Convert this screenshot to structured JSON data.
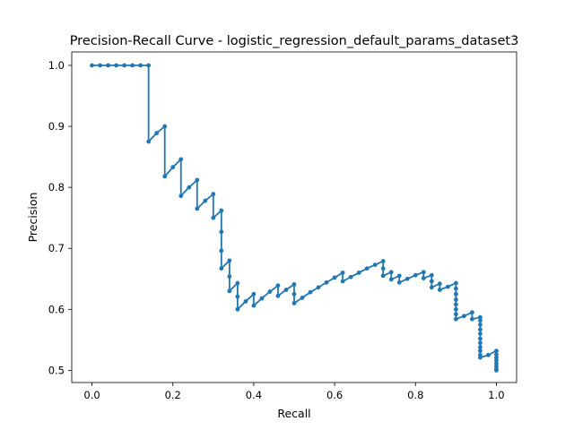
{
  "chart_data": {
    "type": "line",
    "title": "Precision-Recall Curve - logistic_regression_default_params_dataset3",
    "xlabel": "Recall",
    "ylabel": "Precision",
    "xlim": [
      -0.05,
      1.05
    ],
    "ylim": [
      0.48,
      1.022
    ],
    "xticks": [
      {
        "value": 0.0,
        "label": "0.0"
      },
      {
        "value": 0.2,
        "label": "0.2"
      },
      {
        "value": 0.4,
        "label": "0.4"
      },
      {
        "value": 0.6,
        "label": "0.6"
      },
      {
        "value": 0.8,
        "label": "0.8"
      },
      {
        "value": 1.0,
        "label": "1.0"
      }
    ],
    "yticks": [
      {
        "value": 0.5,
        "label": "0.5"
      },
      {
        "value": 0.6,
        "label": "0.6"
      },
      {
        "value": 0.7,
        "label": "0.7"
      },
      {
        "value": 0.8,
        "label": "0.8"
      },
      {
        "value": 0.9,
        "label": "0.9"
      },
      {
        "value": 1.0,
        "label": "1.0"
      }
    ],
    "grid": false,
    "marker": "circle",
    "color": "#1f77b4",
    "x": [
      0.0,
      0.02,
      0.04,
      0.06,
      0.08,
      0.1,
      0.12,
      0.14,
      0.14,
      0.16,
      0.18,
      0.18,
      0.2,
      0.22,
      0.22,
      0.24,
      0.26,
      0.26,
      0.28,
      0.3,
      0.3,
      0.32,
      0.32,
      0.32,
      0.32,
      0.34,
      0.34,
      0.34,
      0.36,
      0.36,
      0.36,
      0.38,
      0.4,
      0.4,
      0.42,
      0.44,
      0.46,
      0.46,
      0.48,
      0.5,
      0.5,
      0.5,
      0.52,
      0.54,
      0.56,
      0.58,
      0.6,
      0.62,
      0.62,
      0.64,
      0.66,
      0.68,
      0.7,
      0.72,
      0.72,
      0.72,
      0.74,
      0.74,
      0.76,
      0.76,
      0.78,
      0.8,
      0.82,
      0.82,
      0.84,
      0.84,
      0.84,
      0.86,
      0.86,
      0.88,
      0.9,
      0.9,
      0.9,
      0.9,
      0.9,
      0.9,
      0.9,
      0.9,
      0.9,
      0.92,
      0.94,
      0.94,
      0.96,
      0.96,
      0.96,
      0.96,
      0.96,
      0.96,
      0.96,
      0.96,
      0.96,
      0.96,
      0.96,
      0.98,
      1.0,
      1.0,
      1.0,
      1.0,
      1.0,
      1.0,
      1.0,
      1.0
    ],
    "y": [
      1.0,
      1.0,
      1.0,
      1.0,
      1.0,
      1.0,
      1.0,
      1.0,
      0.875,
      0.889,
      0.9,
      0.818,
      0.833,
      0.846,
      0.786,
      0.8,
      0.812,
      0.765,
      0.778,
      0.789,
      0.75,
      0.762,
      0.727,
      0.696,
      0.667,
      0.68,
      0.654,
      0.63,
      0.643,
      0.621,
      0.6,
      0.613,
      0.625,
      0.606,
      0.618,
      0.629,
      0.639,
      0.622,
      0.632,
      0.641,
      0.625,
      0.61,
      0.619,
      0.628,
      0.636,
      0.644,
      0.652,
      0.66,
      0.646,
      0.653,
      0.66,
      0.667,
      0.673,
      0.679,
      0.667,
      0.655,
      0.661,
      0.649,
      0.655,
      0.644,
      0.65,
      0.656,
      0.661,
      0.651,
      0.656,
      0.646,
      0.636,
      0.642,
      0.632,
      0.637,
      0.643,
      0.634,
      0.625,
      0.616,
      0.608,
      0.6,
      0.592,
      0.584,
      0.584,
      0.589,
      0.595,
      0.584,
      0.587,
      0.582,
      0.575,
      0.567,
      0.56,
      0.552,
      0.545,
      0.538,
      0.532,
      0.525,
      0.521,
      0.525,
      0.532,
      0.526,
      0.521,
      0.516,
      0.511,
      0.506,
      0.502,
      0.5
    ]
  }
}
